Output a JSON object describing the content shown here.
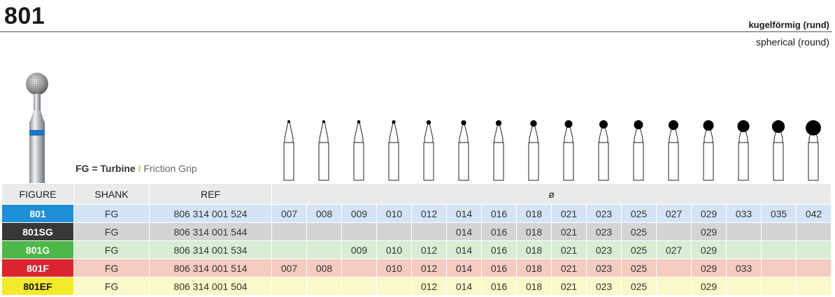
{
  "product": {
    "number": "801",
    "shape_de": "kugelförmig (rund)",
    "shape_en": "spherical (round)"
  },
  "shank_note": {
    "code": "FG = Turbine",
    "separator": "I",
    "desc": "Friction Grip"
  },
  "table": {
    "headers": {
      "figure": "FIGURE",
      "shank": "SHANK",
      "ref": "REF",
      "diameter": "ø"
    },
    "sizes": [
      "007",
      "008",
      "009",
      "010",
      "012",
      "014",
      "016",
      "018",
      "021",
      "023",
      "025",
      "027",
      "029",
      "033",
      "035",
      "042"
    ],
    "rows": [
      {
        "figure": "801",
        "shank": "FG",
        "ref": "806 314 001 524",
        "color": "#1f8fd8",
        "tint": "#d4e4f6",
        "cells": [
          "007",
          "008",
          "009",
          "010",
          "012",
          "014",
          "016",
          "018",
          "021",
          "023",
          "025",
          "027",
          "029",
          "033",
          "035",
          "042"
        ]
      },
      {
        "figure": "801SG",
        "shank": "FG",
        "ref": "806 314 001 544",
        "color": "#383838",
        "tint": "#d4d4d4",
        "cells": [
          "",
          "",
          "",
          "",
          "",
          "014",
          "016",
          "018",
          "021",
          "023",
          "025",
          "",
          "029",
          "",
          "",
          ""
        ]
      },
      {
        "figure": "801G",
        "shank": "FG",
        "ref": "806 314 001 534",
        "color": "#4cb848",
        "tint": "#d8edd3",
        "cells": [
          "",
          "",
          "009",
          "010",
          "012",
          "014",
          "016",
          "018",
          "021",
          "023",
          "025",
          "027",
          "029",
          "",
          "",
          ""
        ]
      },
      {
        "figure": "801F",
        "shank": "FG",
        "ref": "806 314 001 514",
        "color": "#dc2430",
        "tint": "#f6cbc0",
        "cells": [
          "007",
          "008",
          "",
          "010",
          "012",
          "014",
          "016",
          "018",
          "021",
          "023",
          "025",
          "",
          "029",
          "033",
          "",
          ""
        ]
      },
      {
        "figure": "801EF",
        "shank": "FG",
        "ref": "806 314 001 504",
        "color": "#f2ea2a",
        "tint": "#fbf8c9",
        "cells": [
          "",
          "",
          "",
          "",
          "012",
          "014",
          "016",
          "018",
          "021",
          "023",
          "025",
          "",
          "029",
          "",
          "",
          ""
        ]
      }
    ]
  },
  "colors": {
    "header_bg": "#eaeaea",
    "ring_blue": "#1f74c4"
  }
}
